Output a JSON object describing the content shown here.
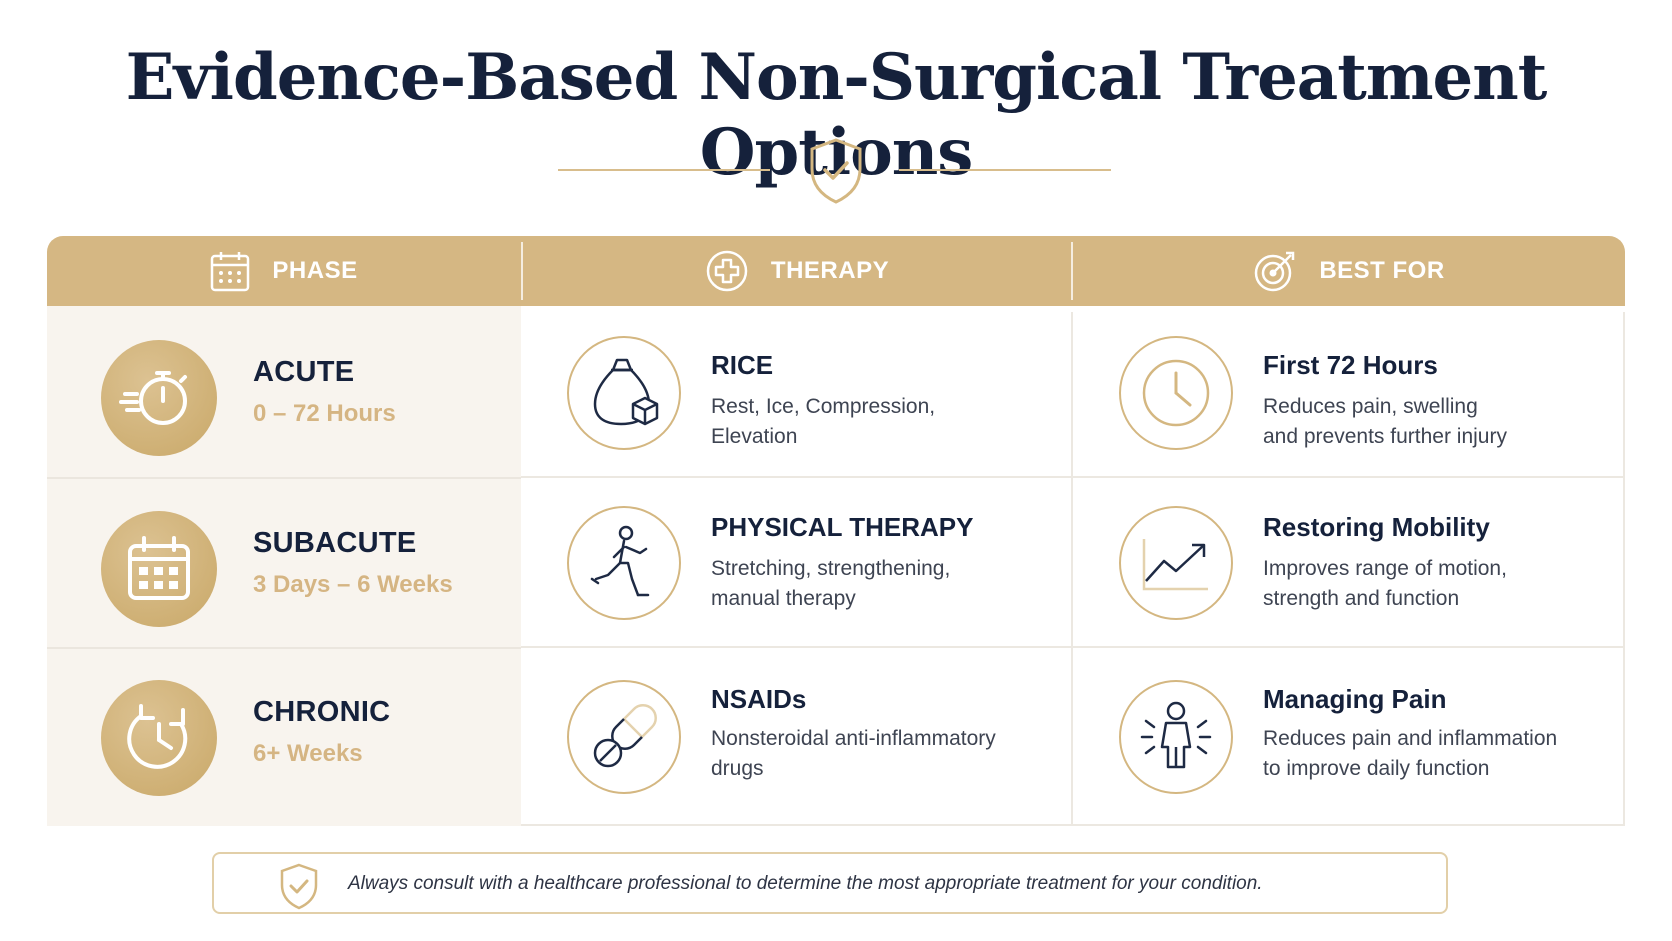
{
  "title": "Evidence-Based Non-Surgical Treatment Options",
  "colors": {
    "gold": "#d5b783",
    "navy": "#15213b",
    "phase_bg": "#f8f4ee"
  },
  "header": {
    "phase": {
      "label": "PHASE",
      "icon": "calendar-icon"
    },
    "therapy": {
      "label": "THERAPY",
      "icon": "medical-cross-icon"
    },
    "best_for": {
      "label": "BEST FOR",
      "icon": "target-icon"
    }
  },
  "rows": [
    {
      "phase": {
        "name": "ACUTE",
        "range": "0 – 72 Hours",
        "icon": "stopwatch-icon"
      },
      "therapy": {
        "title": "RICE",
        "desc": "Rest, Ice, Compression,\nElevation",
        "icon": "ice-pack-icon"
      },
      "best_for": {
        "title": "First 72 Hours",
        "desc": "Reduces pain, swelling\nand prevents further injury",
        "icon": "clock-icon"
      }
    },
    {
      "phase": {
        "name": "SUBACUTE",
        "range": "3 Days – 6 Weeks",
        "icon": "calendar-icon"
      },
      "therapy": {
        "title": "PHYSICAL THERAPY",
        "desc": "Stretching, strengthening,\nmanual therapy",
        "icon": "lunge-exercise-icon"
      },
      "best_for": {
        "title": "Restoring Mobility",
        "desc": "Improves range of motion,\nstrength and function",
        "icon": "trend-up-icon"
      }
    },
    {
      "phase": {
        "name": "CHRONIC",
        "range": "6+ Weeks",
        "icon": "clock-cycle-icon"
      },
      "therapy": {
        "title": "NSAIDs",
        "desc": "Nonsteroidal anti-inflammatory\ndrugs",
        "icon": "pill-icon"
      },
      "best_for": {
        "title": "Managing Pain",
        "desc": "Reduces pain and inflammation\nto improve daily function",
        "icon": "person-pain-icon"
      }
    }
  ],
  "note": "Always consult with a healthcare professional to determine the most appropriate treatment for your condition."
}
